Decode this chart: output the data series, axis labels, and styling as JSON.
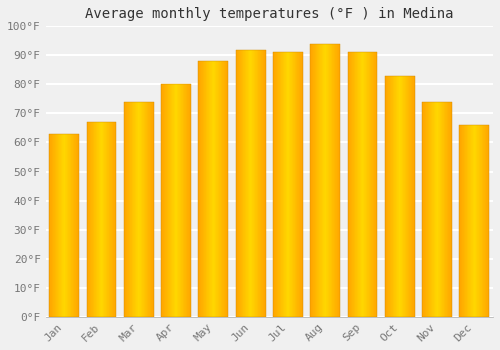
{
  "title": "Average monthly temperatures (°F ) in Medina",
  "months": [
    "Jan",
    "Feb",
    "Mar",
    "Apr",
    "May",
    "Jun",
    "Jul",
    "Aug",
    "Sep",
    "Oct",
    "Nov",
    "Dec"
  ],
  "values": [
    63,
    67,
    74,
    80,
    88,
    92,
    91,
    94,
    91,
    83,
    74,
    66
  ],
  "bar_color_center": "#FFD700",
  "bar_color_edge": "#FFA500",
  "ylim": [
    0,
    100
  ],
  "yticks": [
    0,
    10,
    20,
    30,
    40,
    50,
    60,
    70,
    80,
    90,
    100
  ],
  "ytick_labels": [
    "0°F",
    "10°F",
    "20°F",
    "30°F",
    "40°F",
    "50°F",
    "60°F",
    "70°F",
    "80°F",
    "90°F",
    "100°F"
  ],
  "background_color": "#f0f0f0",
  "plot_bg_color": "#f0f0f0",
  "grid_color": "#ffffff",
  "title_fontsize": 10,
  "tick_fontsize": 8,
  "font_family": "monospace",
  "bar_width": 0.8,
  "n_gradient_steps": 50
}
